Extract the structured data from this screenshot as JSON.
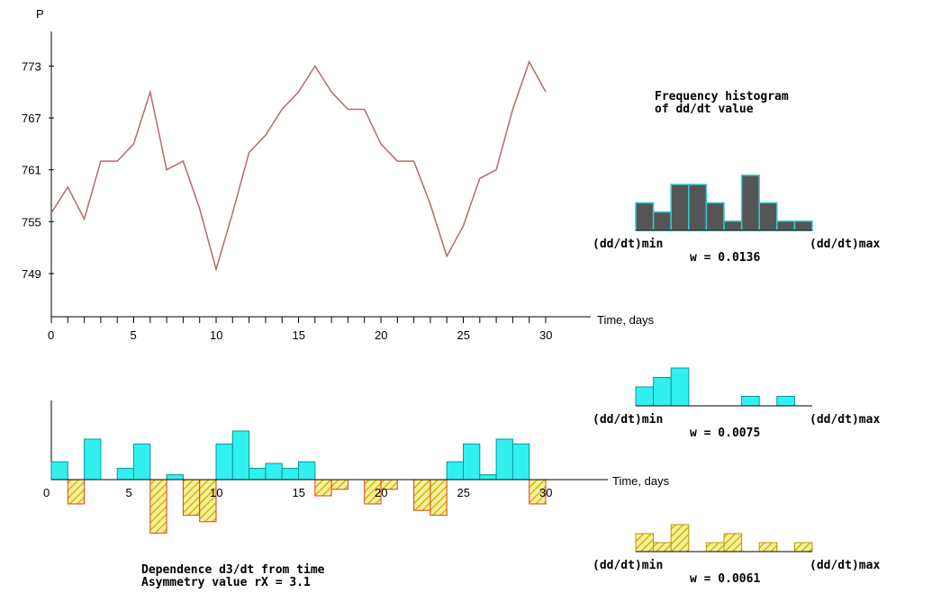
{
  "colors": {
    "line": "#b36b6b",
    "pos_fill": "#33f0f0",
    "pos_stroke": "#009999",
    "neg_fill": "#f5f0a0",
    "neg_hatch": "#d4b800",
    "neg_stroke": "#e04010",
    "hist_dark": "#555555",
    "hist_edge": "#33cccc",
    "axis": "#000000"
  },
  "chart_data": [
    {
      "type": "line",
      "ylabel": "P",
      "xlabel": "Time, days",
      "y_ticks": [
        "773",
        "767",
        "761",
        "755",
        "749"
      ],
      "y_tick_values": [
        773,
        767,
        761,
        755,
        749
      ],
      "x_tick_labels": [
        "0",
        "5",
        "10",
        "15",
        "20",
        "25",
        "30"
      ],
      "x_tick_values": [
        0,
        5,
        10,
        15,
        20,
        25,
        30
      ],
      "xlim": [
        0,
        30
      ],
      "ylim": [
        744,
        777
      ],
      "x": [
        0,
        1,
        2,
        3,
        4,
        5,
        6,
        7,
        8,
        9,
        10,
        11,
        12,
        13,
        14,
        15,
        16,
        17,
        18,
        19,
        20,
        21,
        22,
        23,
        24,
        25,
        26,
        27,
        28,
        29,
        30
      ],
      "y": [
        756,
        759,
        755.3,
        762,
        762,
        764,
        770,
        761,
        762,
        756.5,
        749.5,
        756,
        763,
        765,
        768,
        770,
        773,
        770,
        768,
        768,
        764,
        762,
        762,
        757,
        751,
        754.5,
        760,
        761,
        768,
        773.5,
        770
      ]
    },
    {
      "type": "bar",
      "xlabel": "Time, days",
      "x_tick_labels": [
        "0",
        "5",
        "10",
        "15",
        "20",
        "25",
        "30"
      ],
      "x_tick_values": [
        0,
        5,
        10,
        15,
        20,
        25,
        30
      ],
      "xlim": [
        0,
        30
      ],
      "ylim": [
        -3.3,
        4.6
      ],
      "x": [
        0,
        1,
        2,
        3,
        4,
        5,
        6,
        7,
        8,
        9,
        10,
        11,
        12,
        13,
        14,
        15,
        16,
        17,
        18,
        19,
        20,
        21,
        22,
        23,
        24,
        25,
        26,
        27,
        28,
        29
      ],
      "values": [
        1.1,
        -1.5,
        2.5,
        0,
        0.7,
        2.2,
        -3.3,
        0.3,
        -2.2,
        -2.6,
        2.2,
        3,
        0.7,
        1,
        0.7,
        1.1,
        -1,
        -0.6,
        0,
        -1.5,
        -0.6,
        0,
        -1.9,
        -2.2,
        1.1,
        2.2,
        0.3,
        2.5,
        2.2,
        -1.5
      ],
      "caption_line1": "Dependence d3/dt from time",
      "caption_line2": "Asymmetry value rX =  3.1"
    },
    {
      "type": "bar",
      "title_line1": "Frequency histogram",
      "title_line2": "of dd/dt value",
      "label_min": "(dd/dt)min",
      "label_max": "(dd/dt)max",
      "w_label": "w = 0.0136",
      "values": [
        3,
        2,
        5,
        5,
        3,
        1,
        6,
        3,
        1,
        1
      ]
    },
    {
      "type": "bar",
      "label_min": "(dd/dt)min",
      "label_max": "(dd/dt)max",
      "w_label": "w = 0.0075",
      "values": [
        2,
        3,
        4,
        0,
        0,
        0,
        1,
        0,
        1,
        0
      ]
    },
    {
      "type": "bar",
      "label_min": "(dd/dt)min",
      "label_max": "(dd/dt)max",
      "w_label": "w = 0.0061",
      "values": [
        2,
        1,
        3,
        0,
        1,
        2,
        0,
        1,
        0,
        1
      ]
    }
  ]
}
